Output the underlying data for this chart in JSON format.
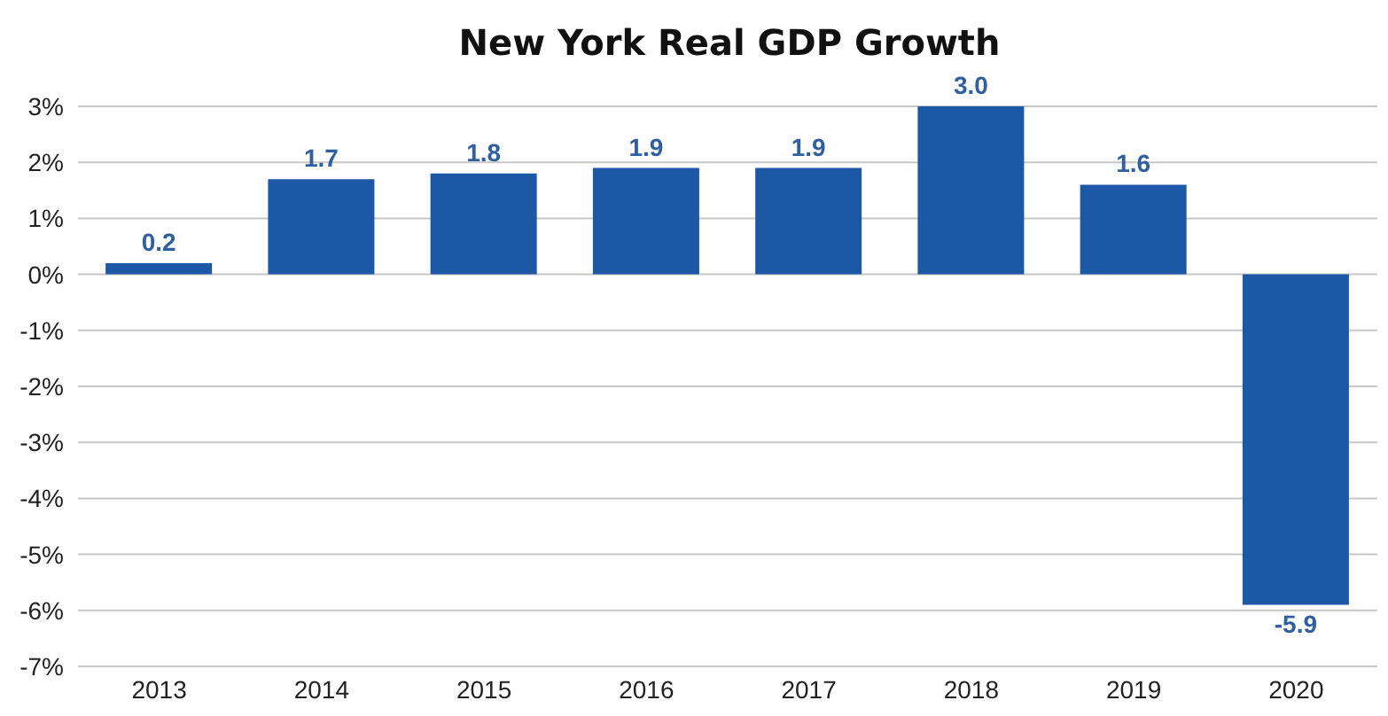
{
  "chart_data": {
    "type": "bar",
    "title": "New York Real GDP Growth",
    "categories": [
      "2013",
      "2014",
      "2015",
      "2016",
      "2017",
      "2018",
      "2019",
      "2020"
    ],
    "values": [
      0.2,
      1.7,
      1.8,
      1.9,
      1.9,
      3.0,
      1.6,
      -5.9
    ],
    "value_labels": [
      "0.2",
      "1.7",
      "1.8",
      "1.9",
      "1.9",
      "3.0",
      "1.6",
      "-5.9"
    ],
    "color": "#1d58a6",
    "ylim": [
      -7,
      3
    ],
    "yticks": [
      {
        "value": 3,
        "label": "3%"
      },
      {
        "value": 2,
        "label": "2%"
      },
      {
        "value": 1,
        "label": "1%"
      },
      {
        "value": 0,
        "label": "0%"
      },
      {
        "value": -1,
        "label": "-1%"
      },
      {
        "value": -2,
        "label": "-2%"
      },
      {
        "value": -3,
        "label": "-3%"
      },
      {
        "value": -4,
        "label": "-4%"
      },
      {
        "value": -5,
        "label": "-5%"
      },
      {
        "value": -6,
        "label": "-6%"
      },
      {
        "value": -7,
        "label": "-7%"
      }
    ],
    "grid": "y"
  }
}
